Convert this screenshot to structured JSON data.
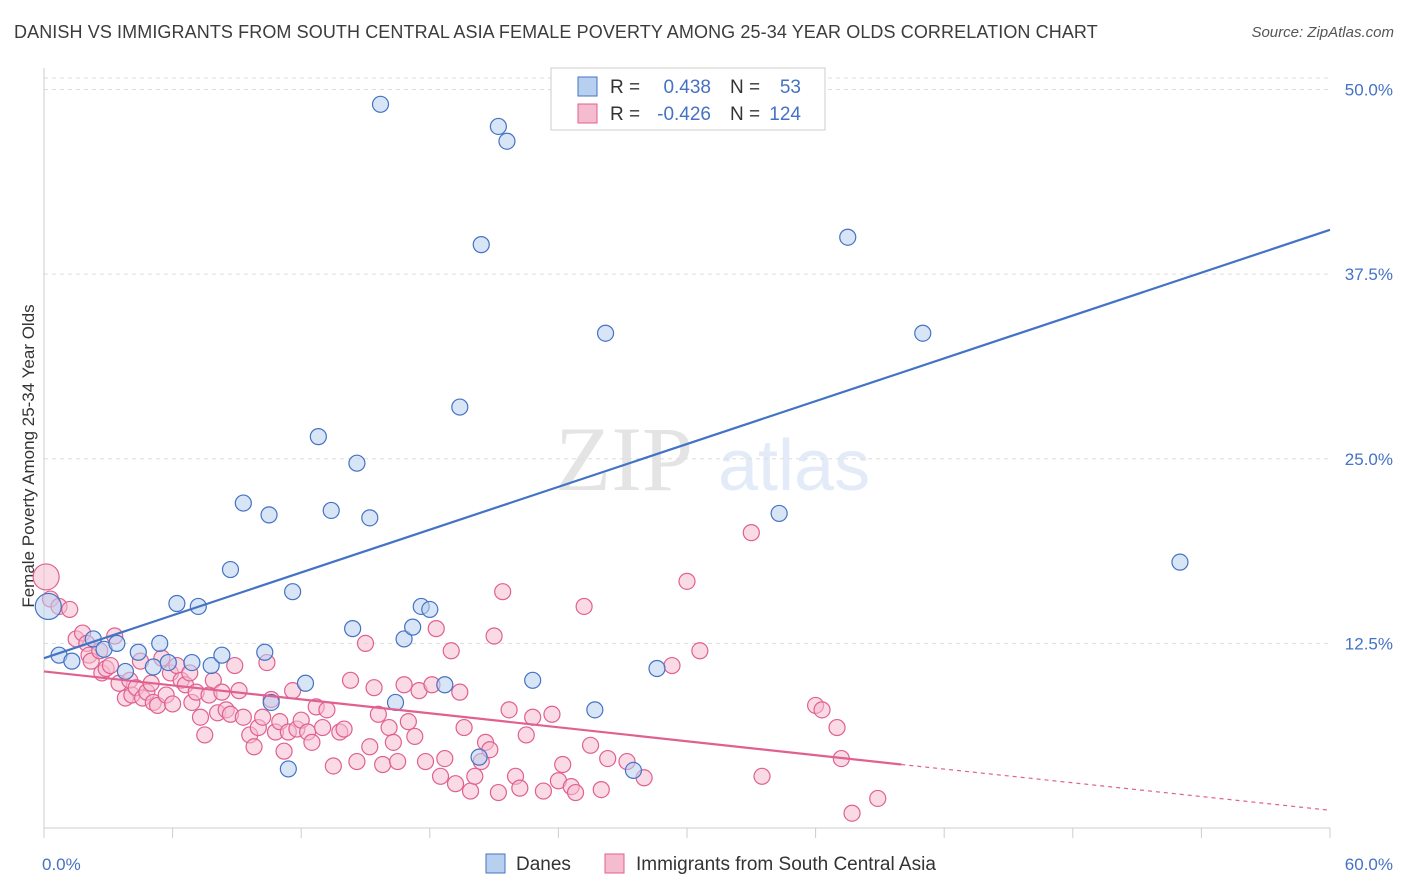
{
  "header": {
    "title": "DANISH VS IMMIGRANTS FROM SOUTH CENTRAL ASIA FEMALE POVERTY AMONG 25-34 YEAR OLDS CORRELATION CHART",
    "source": "Source: ZipAtlas.com"
  },
  "watermark": {
    "zip": "ZIP",
    "atlas": "atlas"
  },
  "colors": {
    "danes": "#4472c4",
    "danes_fill": "#b8d0f0",
    "immigrants": "#e06090",
    "immigrants_fill": "#f5bcd0",
    "text_blue": "#4472c4",
    "text_pink": "#e06090",
    "grid": "#dddddd"
  },
  "legend": {
    "rows": [
      {
        "r_label": "R =",
        "r_value": "0.438",
        "n_label": "N =",
        "n_value": "53"
      },
      {
        "r_label": "R =",
        "r_value": "-0.426",
        "n_label": "N =",
        "n_value": "124"
      }
    ]
  },
  "bottom_legend": {
    "danes": "Danes",
    "immigrants": "Immigrants from South Central Asia"
  },
  "chart_data": {
    "type": "scatter",
    "title": "DANISH VS IMMIGRANTS FROM SOUTH CENTRAL ASIA FEMALE POVERTY AMONG 25-34 YEAR OLDS CORRELATION CHART",
    "xlabel": "",
    "ylabel": "Female Poverty Among 25-34 Year Olds",
    "xlim": [
      0,
      60
    ],
    "ylim": [
      0,
      52
    ],
    "x_tick_labels": [
      "0.0%",
      "60.0%"
    ],
    "y_ticks": [
      12.5,
      25.0,
      37.5,
      50.0
    ],
    "y_tick_labels": [
      "12.5%",
      "25.0%",
      "37.5%",
      "50.0%"
    ],
    "grid": true,
    "legend_position": "top-center",
    "series": [
      {
        "name": "Danes",
        "r": 0.438,
        "n": 53,
        "trend": {
          "x": [
            0,
            60
          ],
          "y": [
            11.5,
            40.5
          ],
          "extrapolated_from": null
        },
        "points": [
          [
            0.2,
            15.0
          ],
          [
            0.7,
            11.7
          ],
          [
            1.3,
            11.3
          ],
          [
            2.3,
            12.8
          ],
          [
            2.8,
            12.1
          ],
          [
            3.4,
            12.5
          ],
          [
            3.8,
            10.6
          ],
          [
            4.4,
            11.9
          ],
          [
            5.1,
            10.9
          ],
          [
            5.4,
            12.5
          ],
          [
            5.8,
            11.2
          ],
          [
            6.2,
            15.2
          ],
          [
            6.9,
            11.2
          ],
          [
            7.2,
            15.0
          ],
          [
            7.8,
            11.0
          ],
          [
            8.3,
            11.7
          ],
          [
            8.7,
            17.5
          ],
          [
            9.3,
            22.0
          ],
          [
            10.3,
            11.9
          ],
          [
            10.5,
            21.2
          ],
          [
            10.6,
            8.5
          ],
          [
            11.4,
            4.0
          ],
          [
            11.6,
            16.0
          ],
          [
            12.2,
            9.8
          ],
          [
            12.8,
            26.5
          ],
          [
            13.4,
            21.5
          ],
          [
            14.4,
            13.5
          ],
          [
            14.6,
            24.7
          ],
          [
            15.2,
            21.0
          ],
          [
            15.7,
            49.0
          ],
          [
            16.4,
            8.5
          ],
          [
            16.8,
            12.8
          ],
          [
            17.2,
            13.6
          ],
          [
            17.6,
            15.0
          ],
          [
            18.0,
            14.8
          ],
          [
            18.7,
            9.7
          ],
          [
            19.4,
            28.5
          ],
          [
            20.3,
            4.8
          ],
          [
            20.4,
            39.5
          ],
          [
            21.2,
            47.5
          ],
          [
            21.6,
            46.5
          ],
          [
            22.8,
            10.0
          ],
          [
            25.7,
            8.0
          ],
          [
            26.2,
            33.5
          ],
          [
            27.5,
            3.9
          ],
          [
            28.6,
            10.8
          ],
          [
            29.7,
            50.5
          ],
          [
            34.3,
            21.3
          ],
          [
            37.5,
            40.0
          ],
          [
            41.0,
            33.5
          ],
          [
            53.0,
            18.0
          ]
        ]
      },
      {
        "name": "Immigrants from South Central Asia",
        "r": -0.426,
        "n": 124,
        "trend": {
          "x": [
            0,
            40
          ],
          "y": [
            10.6,
            4.3
          ],
          "extrapolated_to": [
            60,
            1.2
          ]
        },
        "points": [
          [
            0.1,
            17.0
          ],
          [
            0.3,
            15.5
          ],
          [
            0.7,
            15.0
          ],
          [
            1.2,
            14.8
          ],
          [
            1.5,
            12.8
          ],
          [
            1.8,
            13.2
          ],
          [
            2.0,
            12.5
          ],
          [
            2.1,
            11.7
          ],
          [
            2.2,
            11.3
          ],
          [
            2.6,
            12.0
          ],
          [
            2.7,
            10.5
          ],
          [
            2.9,
            10.8
          ],
          [
            3.1,
            11.0
          ],
          [
            3.3,
            13.0
          ],
          [
            3.5,
            9.8
          ],
          [
            3.8,
            8.8
          ],
          [
            4.0,
            10.0
          ],
          [
            4.1,
            9.0
          ],
          [
            4.3,
            9.5
          ],
          [
            4.5,
            11.3
          ],
          [
            4.6,
            8.8
          ],
          [
            4.8,
            9.2
          ],
          [
            5.0,
            9.8
          ],
          [
            5.1,
            8.5
          ],
          [
            5.3,
            8.3
          ],
          [
            5.5,
            11.5
          ],
          [
            5.7,
            9.0
          ],
          [
            5.9,
            10.5
          ],
          [
            6.0,
            8.4
          ],
          [
            6.2,
            11.0
          ],
          [
            6.4,
            10.0
          ],
          [
            6.6,
            9.7
          ],
          [
            6.8,
            10.5
          ],
          [
            6.9,
            8.5
          ],
          [
            7.1,
            9.2
          ],
          [
            7.3,
            7.5
          ],
          [
            7.5,
            6.3
          ],
          [
            7.7,
            9.0
          ],
          [
            7.9,
            10.0
          ],
          [
            8.1,
            7.8
          ],
          [
            8.3,
            9.2
          ],
          [
            8.5,
            8.0
          ],
          [
            8.7,
            7.7
          ],
          [
            8.9,
            11.0
          ],
          [
            9.1,
            9.3
          ],
          [
            9.3,
            7.5
          ],
          [
            9.6,
            6.3
          ],
          [
            9.8,
            5.5
          ],
          [
            10.0,
            6.8
          ],
          [
            10.2,
            7.5
          ],
          [
            10.4,
            11.2
          ],
          [
            10.6,
            8.7
          ],
          [
            10.8,
            6.5
          ],
          [
            11.0,
            7.2
          ],
          [
            11.2,
            5.2
          ],
          [
            11.4,
            6.5
          ],
          [
            11.6,
            9.3
          ],
          [
            11.8,
            6.7
          ],
          [
            12.0,
            7.3
          ],
          [
            12.3,
            6.5
          ],
          [
            12.5,
            5.8
          ],
          [
            12.7,
            8.2
          ],
          [
            13.0,
            6.8
          ],
          [
            13.2,
            8.0
          ],
          [
            13.5,
            4.2
          ],
          [
            13.8,
            6.5
          ],
          [
            14.0,
            6.7
          ],
          [
            14.3,
            10.0
          ],
          [
            14.6,
            4.5
          ],
          [
            15.0,
            12.5
          ],
          [
            15.2,
            5.5
          ],
          [
            15.4,
            9.5
          ],
          [
            15.6,
            7.7
          ],
          [
            15.8,
            4.3
          ],
          [
            16.1,
            6.8
          ],
          [
            16.3,
            5.8
          ],
          [
            16.5,
            4.5
          ],
          [
            16.8,
            9.7
          ],
          [
            17.0,
            7.2
          ],
          [
            17.3,
            6.2
          ],
          [
            17.5,
            9.3
          ],
          [
            17.8,
            4.5
          ],
          [
            18.1,
            9.7
          ],
          [
            18.3,
            13.5
          ],
          [
            18.5,
            3.5
          ],
          [
            18.7,
            4.7
          ],
          [
            19.0,
            12.0
          ],
          [
            19.2,
            3.0
          ],
          [
            19.4,
            9.2
          ],
          [
            19.6,
            6.8
          ],
          [
            19.9,
            2.5
          ],
          [
            20.1,
            3.5
          ],
          [
            20.4,
            4.5
          ],
          [
            20.6,
            5.8
          ],
          [
            20.8,
            5.3
          ],
          [
            21.0,
            13.0
          ],
          [
            21.2,
            2.4
          ],
          [
            21.4,
            16.0
          ],
          [
            21.7,
            8.0
          ],
          [
            22.0,
            3.5
          ],
          [
            22.2,
            2.7
          ],
          [
            22.5,
            6.3
          ],
          [
            22.8,
            7.5
          ],
          [
            23.3,
            2.5
          ],
          [
            23.7,
            7.7
          ],
          [
            24.0,
            3.2
          ],
          [
            24.2,
            4.3
          ],
          [
            24.6,
            2.8
          ],
          [
            24.8,
            2.4
          ],
          [
            25.2,
            15.0
          ],
          [
            25.5,
            5.6
          ],
          [
            26.0,
            2.6
          ],
          [
            26.3,
            4.7
          ],
          [
            27.2,
            4.5
          ],
          [
            28.0,
            3.4
          ],
          [
            29.3,
            11.0
          ],
          [
            30.0,
            16.7
          ],
          [
            30.6,
            12.0
          ],
          [
            33.0,
            20.0
          ],
          [
            33.5,
            3.5
          ],
          [
            36.0,
            8.3
          ],
          [
            36.3,
            8.0
          ],
          [
            37.0,
            6.8
          ],
          [
            37.2,
            4.7
          ],
          [
            37.7,
            1.0
          ],
          [
            38.9,
            2.0
          ]
        ]
      }
    ]
  }
}
